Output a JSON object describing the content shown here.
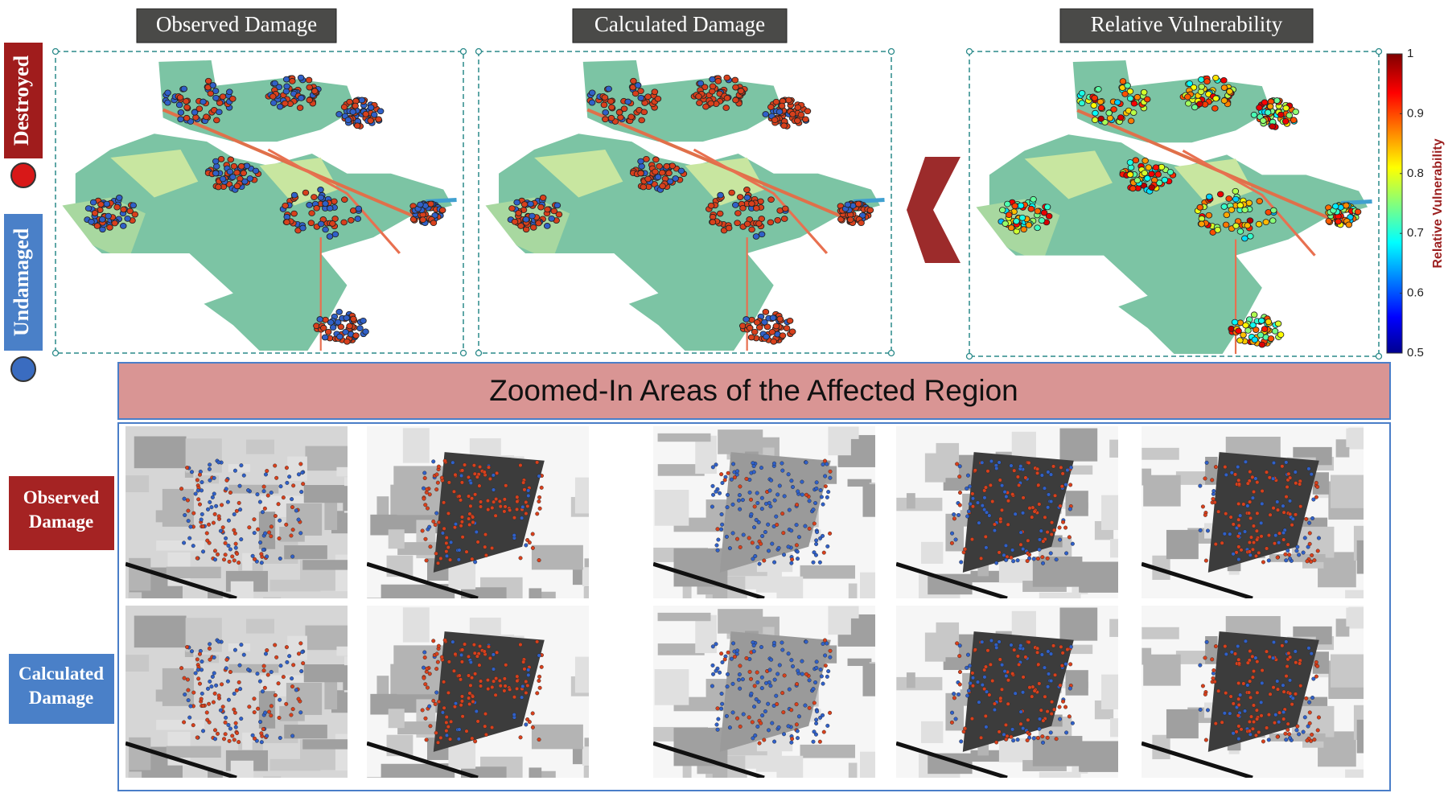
{
  "legend": {
    "destroyed": "Destroyed",
    "undamaged": "Undamaged"
  },
  "panels": [
    {
      "title": "Observed Damage"
    },
    {
      "title": "Calculated Damage"
    },
    {
      "title": "Relative Vulnerability"
    }
  ],
  "colorbar": {
    "title": "Relative Vulnerability",
    "range": [
      0.5,
      1
    ],
    "ticks": [
      0.5,
      0.6,
      0.7,
      0.8,
      0.9,
      1
    ]
  },
  "zoom": {
    "title": "Zoomed-In Areas of the Affected Region",
    "rows": [
      "Observed Damage",
      "Calculated Damage"
    ]
  }
}
